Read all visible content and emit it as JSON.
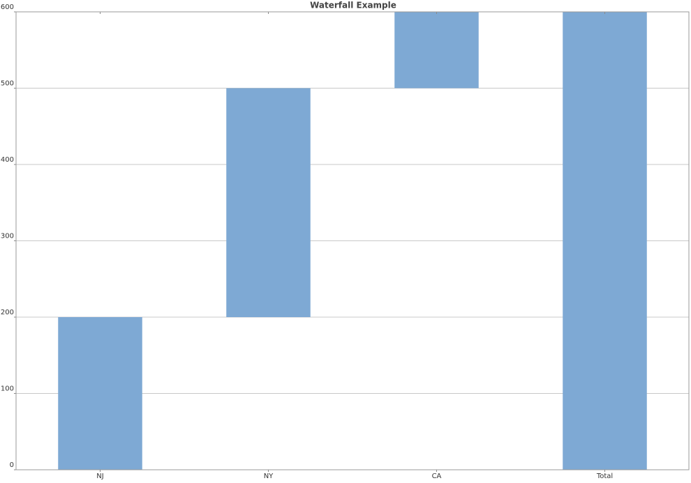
{
  "chart_data": {
    "type": "waterfall",
    "title": "Waterfall Example",
    "categories": [
      "NJ",
      "NY",
      "CA",
      "Total"
    ],
    "values": [
      200,
      300,
      100,
      600
    ],
    "color": "#7ea9d4",
    "ylim": [
      0,
      600
    ],
    "yticks": [
      0,
      100,
      200,
      300,
      400,
      500,
      600
    ],
    "grid": true
  }
}
